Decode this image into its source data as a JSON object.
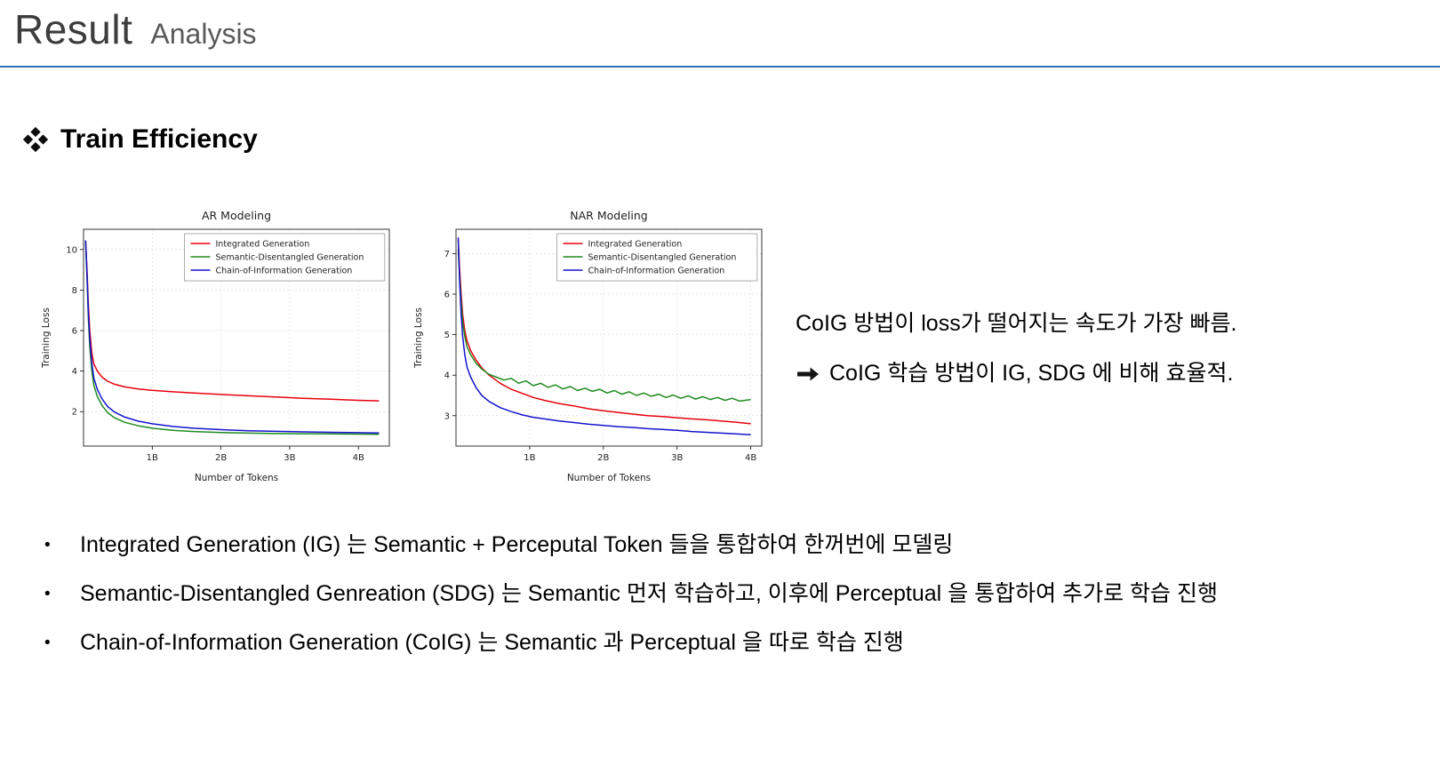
{
  "page": {
    "title_main": "Result",
    "title_sub": "Analysis",
    "accent_color": "#2e74b5"
  },
  "section": {
    "heading_bullet_glyph": "❖",
    "heading": "Train Efficiency"
  },
  "annotation": {
    "line1": "CoIG 방법이 loss가 떨어지는 속도가 가장 빠름.",
    "arrow_glyph": "➔",
    "line2": "CoIG 학습 방법이 IG, SDG 에 비해 효율적."
  },
  "bullets": [
    "Integrated Generation (IG) 는 Semantic + Perceputal Token 들을 통합하여 한꺼번에 모델링",
    "Semantic-Disentangled Genreation (SDG) 는 Semantic 먼저 학습하고, 이후에 Perceptual 을 통합하여 추가로 학습 진행",
    "Chain-of-Information Generation (CoIG) 는 Semantic 과 Perceptual 을 따로 학습 진행"
  ],
  "chart_data": [
    {
      "type": "line",
      "title": "AR Modeling",
      "xlabel": "Number of Tokens",
      "ylabel": "Training Loss",
      "xlim": [
        0,
        4.45
      ],
      "ylim": [
        0.3,
        11.0
      ],
      "xticks": [
        {
          "v": 1,
          "label": "1B"
        },
        {
          "v": 2,
          "label": "2B"
        },
        {
          "v": 3,
          "label": "3B"
        },
        {
          "v": 4,
          "label": "4B"
        }
      ],
      "yticks": [
        2,
        4,
        6,
        8,
        10
      ],
      "grid": true,
      "legend_position": "upper right",
      "series": [
        {
          "name": "Integrated Generation",
          "color": "#e8000d",
          "points": [
            [
              0.03,
              10.45
            ],
            [
              0.05,
              9.0
            ],
            [
              0.07,
              7.3
            ],
            [
              0.09,
              6.0
            ],
            [
              0.12,
              4.9
            ],
            [
              0.15,
              4.35
            ],
            [
              0.2,
              4.0
            ],
            [
              0.27,
              3.7
            ],
            [
              0.35,
              3.5
            ],
            [
              0.45,
              3.35
            ],
            [
              0.6,
              3.22
            ],
            [
              0.8,
              3.12
            ],
            [
              1.0,
              3.05
            ],
            [
              1.3,
              2.98
            ],
            [
              1.6,
              2.92
            ],
            [
              2.0,
              2.85
            ],
            [
              2.4,
              2.78
            ],
            [
              2.8,
              2.72
            ],
            [
              3.2,
              2.66
            ],
            [
              3.6,
              2.61
            ],
            [
              4.0,
              2.56
            ],
            [
              4.3,
              2.53
            ]
          ]
        },
        {
          "name": "Semantic-Disentangled Generation",
          "color": "#1f8a1f",
          "points": [
            [
              0.03,
              10.4
            ],
            [
              0.05,
              8.6
            ],
            [
              0.07,
              6.6
            ],
            [
              0.09,
              5.2
            ],
            [
              0.12,
              4.0
            ],
            [
              0.15,
              3.3
            ],
            [
              0.2,
              2.75
            ],
            [
              0.27,
              2.3
            ],
            [
              0.35,
              1.95
            ],
            [
              0.45,
              1.7
            ],
            [
              0.6,
              1.47
            ],
            [
              0.8,
              1.3
            ],
            [
              1.0,
              1.18
            ],
            [
              1.3,
              1.08
            ],
            [
              1.6,
              1.02
            ],
            [
              2.0,
              0.97
            ],
            [
              2.4,
              0.94
            ],
            [
              2.8,
              0.92
            ],
            [
              3.2,
              0.91
            ],
            [
              3.6,
              0.9
            ],
            [
              4.0,
              0.89
            ],
            [
              4.3,
              0.88
            ]
          ]
        },
        {
          "name": "Chain-of-Information Generation",
          "color": "#1414cd",
          "points": [
            [
              0.03,
              10.45
            ],
            [
              0.05,
              8.8
            ],
            [
              0.07,
              6.9
            ],
            [
              0.09,
              5.6
            ],
            [
              0.12,
              4.4
            ],
            [
              0.15,
              3.65
            ],
            [
              0.2,
              3.1
            ],
            [
              0.27,
              2.62
            ],
            [
              0.35,
              2.25
            ],
            [
              0.45,
              1.98
            ],
            [
              0.6,
              1.73
            ],
            [
              0.8,
              1.53
            ],
            [
              1.0,
              1.4
            ],
            [
              1.3,
              1.27
            ],
            [
              1.6,
              1.18
            ],
            [
              2.0,
              1.11
            ],
            [
              2.4,
              1.06
            ],
            [
              2.8,
              1.03
            ],
            [
              3.2,
              1.0
            ],
            [
              3.6,
              0.98
            ],
            [
              4.0,
              0.96
            ],
            [
              4.3,
              0.95
            ]
          ]
        }
      ]
    },
    {
      "type": "line",
      "title": "NAR Modeling",
      "xlabel": "Number of Tokens",
      "ylabel": "Training Loss",
      "xlim": [
        0,
        4.15
      ],
      "ylim": [
        2.25,
        7.6
      ],
      "xticks": [
        {
          "v": 1,
          "label": "1B"
        },
        {
          "v": 2,
          "label": "2B"
        },
        {
          "v": 3,
          "label": "3B"
        },
        {
          "v": 4,
          "label": "4B"
        }
      ],
      "yticks": [
        3,
        4,
        5,
        6,
        7
      ],
      "grid": true,
      "legend_position": "upper right",
      "series": [
        {
          "name": "Integrated Generation",
          "color": "#e8000d",
          "points": [
            [
              0.03,
              7.35
            ],
            [
              0.05,
              6.6
            ],
            [
              0.07,
              6.0
            ],
            [
              0.09,
              5.5
            ],
            [
              0.12,
              5.1
            ],
            [
              0.15,
              4.85
            ],
            [
              0.2,
              4.6
            ],
            [
              0.27,
              4.38
            ],
            [
              0.35,
              4.18
            ],
            [
              0.45,
              4.0
            ],
            [
              0.6,
              3.8
            ],
            [
              0.75,
              3.65
            ],
            [
              0.9,
              3.55
            ],
            [
              1.05,
              3.45
            ],
            [
              1.2,
              3.38
            ],
            [
              1.4,
              3.3
            ],
            [
              1.6,
              3.24
            ],
            [
              1.8,
              3.17
            ],
            [
              2.0,
              3.12
            ],
            [
              2.2,
              3.08
            ],
            [
              2.4,
              3.04
            ],
            [
              2.6,
              3.0
            ],
            [
              2.8,
              2.98
            ],
            [
              3.0,
              2.95
            ],
            [
              3.2,
              2.92
            ],
            [
              3.4,
              2.9
            ],
            [
              3.6,
              2.87
            ],
            [
              3.8,
              2.84
            ],
            [
              4.0,
              2.8
            ]
          ]
        },
        {
          "name": "Semantic-Disentangled Generation",
          "color": "#1f8a1f",
          "points": [
            [
              0.03,
              7.1
            ],
            [
              0.05,
              6.4
            ],
            [
              0.07,
              5.8
            ],
            [
              0.09,
              5.3
            ],
            [
              0.12,
              4.95
            ],
            [
              0.15,
              4.7
            ],
            [
              0.2,
              4.5
            ],
            [
              0.27,
              4.3
            ],
            [
              0.35,
              4.15
            ],
            [
              0.45,
              4.02
            ],
            [
              0.55,
              3.95
            ],
            [
              0.65,
              3.88
            ],
            [
              0.75,
              3.92
            ],
            [
              0.85,
              3.8
            ],
            [
              0.95,
              3.86
            ],
            [
              1.05,
              3.74
            ],
            [
              1.15,
              3.8
            ],
            [
              1.25,
              3.7
            ],
            [
              1.35,
              3.76
            ],
            [
              1.45,
              3.66
            ],
            [
              1.55,
              3.72
            ],
            [
              1.65,
              3.62
            ],
            [
              1.75,
              3.68
            ],
            [
              1.85,
              3.6
            ],
            [
              1.95,
              3.65
            ],
            [
              2.05,
              3.56
            ],
            [
              2.15,
              3.62
            ],
            [
              2.25,
              3.53
            ],
            [
              2.35,
              3.59
            ],
            [
              2.45,
              3.5
            ],
            [
              2.55,
              3.56
            ],
            [
              2.65,
              3.48
            ],
            [
              2.75,
              3.53
            ],
            [
              2.85,
              3.45
            ],
            [
              2.95,
              3.51
            ],
            [
              3.05,
              3.43
            ],
            [
              3.15,
              3.49
            ],
            [
              3.25,
              3.41
            ],
            [
              3.35,
              3.47
            ],
            [
              3.45,
              3.4
            ],
            [
              3.55,
              3.45
            ],
            [
              3.65,
              3.38
            ],
            [
              3.75,
              3.43
            ],
            [
              3.85,
              3.36
            ],
            [
              4.0,
              3.4
            ]
          ]
        },
        {
          "name": "Chain-of-Information Generation",
          "color": "#1414cd",
          "points": [
            [
              0.03,
              7.4
            ],
            [
              0.05,
              6.3
            ],
            [
              0.07,
              5.5
            ],
            [
              0.09,
              4.95
            ],
            [
              0.12,
              4.5
            ],
            [
              0.15,
              4.2
            ],
            [
              0.2,
              3.95
            ],
            [
              0.27,
              3.7
            ],
            [
              0.35,
              3.5
            ],
            [
              0.45,
              3.35
            ],
            [
              0.6,
              3.2
            ],
            [
              0.75,
              3.1
            ],
            [
              0.9,
              3.02
            ],
            [
              1.05,
              2.96
            ],
            [
              1.2,
              2.92
            ],
            [
              1.4,
              2.87
            ],
            [
              1.6,
              2.83
            ],
            [
              1.8,
              2.79
            ],
            [
              2.0,
              2.76
            ],
            [
              2.2,
              2.73
            ],
            [
              2.4,
              2.71
            ],
            [
              2.6,
              2.68
            ],
            [
              2.8,
              2.66
            ],
            [
              3.0,
              2.64
            ],
            [
              3.2,
              2.61
            ],
            [
              3.4,
              2.59
            ],
            [
              3.6,
              2.57
            ],
            [
              3.8,
              2.55
            ],
            [
              4.0,
              2.53
            ]
          ]
        }
      ]
    }
  ]
}
